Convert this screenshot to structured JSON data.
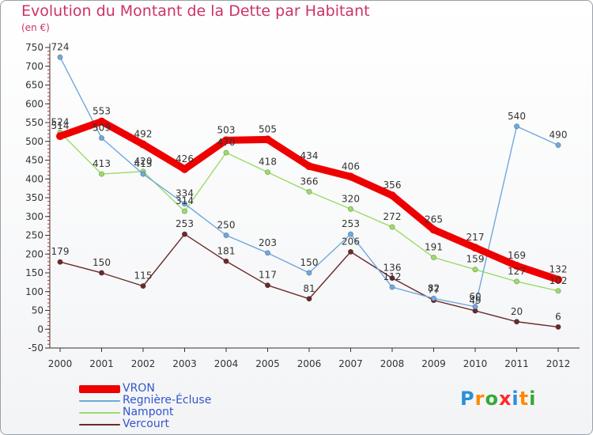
{
  "header": {
    "title": "Evolution du Montant de la Dette par Habitant",
    "unit": "(en €)"
  },
  "logo": {
    "letters": [
      "P",
      "r",
      "o",
      "x",
      "i",
      "t",
      "i"
    ],
    "colors": [
      "#2a8fd8",
      "#ff8a00",
      "#33aa33",
      "#ff2a2a",
      "#2a8fd8",
      "#ff8a00",
      "#33aa33"
    ]
  },
  "chart_data": {
    "type": "line",
    "x": [
      "2000",
      "2001",
      "2002",
      "2003",
      "2004",
      "2005",
      "2006",
      "2007",
      "2008",
      "2009",
      "2010",
      "2011",
      "2012"
    ],
    "ylim": [
      -50,
      750
    ],
    "yticks": [
      "-50",
      "0",
      "50",
      "100",
      "150",
      "200",
      "250",
      "300",
      "350",
      "400",
      "450",
      "500",
      "550",
      "600",
      "650",
      "700",
      "750"
    ],
    "grid": false,
    "legend_position": "bottom-left",
    "series": [
      {
        "name": "VRON",
        "color": "#ee0000",
        "values": [
          514,
          553,
          492,
          426,
          503,
          505,
          434,
          406,
          356,
          265,
          217,
          169,
          132
        ],
        "labels": [
          "514",
          "553",
          "492",
          "426",
          "503",
          "505",
          "434",
          "406",
          "356",
          "265",
          "217",
          "169",
          "132"
        ]
      },
      {
        "name": "Regnière-Écluse",
        "color": "#6fa8dc",
        "values": [
          724,
          509,
          413,
          334,
          250,
          203,
          150,
          253,
          112,
          82,
          60,
          540,
          490
        ],
        "labels": [
          "724",
          "509",
          "413",
          "334",
          "250",
          "203",
          "150",
          "253",
          "112",
          "82",
          "60",
          "540",
          "490"
        ]
      },
      {
        "name": "Nampont",
        "color": "#99dd66",
        "values": [
          524,
          413,
          420,
          314,
          470,
          418,
          366,
          320,
          272,
          191,
          159,
          127,
          102
        ],
        "labels": [
          "524",
          "413",
          "420",
          "314",
          "470",
          "418",
          "366",
          "320",
          "272",
          "191",
          "159",
          "127",
          "102"
        ]
      },
      {
        "name": "Vercourt",
        "color": "#6b2a2a",
        "values": [
          179,
          150,
          115,
          253,
          181,
          117,
          81,
          206,
          136,
          77,
          49,
          20,
          6
        ],
        "labels": [
          "179",
          "150",
          "115",
          "253",
          "181",
          "117",
          "81",
          "206",
          "136",
          "77",
          "49",
          "20",
          "6"
        ]
      }
    ]
  }
}
